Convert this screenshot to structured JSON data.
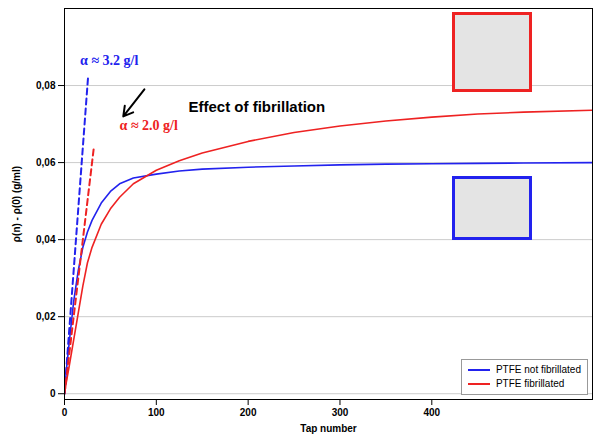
{
  "chart_data": {
    "type": "line",
    "x_label": "Tap number",
    "y_label": "ρ(n) - ρ(0) (g/ml)",
    "xlim": [
      0,
      575
    ],
    "xticks": [
      0,
      100,
      200,
      300,
      400
    ],
    "ylim": [
      -0.0015,
      0.1
    ],
    "yticks": [
      0,
      {
        "value": 0.02,
        "label": "0,02"
      },
      {
        "value": 0.04,
        "label": "0,04"
      },
      {
        "value": 0.06,
        "label": "0,06"
      },
      {
        "value": 0.08,
        "label": "0,08"
      }
    ],
    "grid": "y",
    "legend": "lower right",
    "x": [
      0,
      2,
      5,
      10,
      15,
      20,
      25,
      30,
      40,
      50,
      60,
      75,
      100,
      125,
      150,
      200,
      250,
      300,
      350,
      400,
      450,
      500,
      575
    ],
    "series": [
      {
        "name": "PTFE not fibrillated",
        "color": "#2222ee",
        "values": [
          0,
          0.006,
          0.013,
          0.024,
          0.032,
          0.038,
          0.042,
          0.045,
          0.0495,
          0.0525,
          0.0545,
          0.056,
          0.057,
          0.0578,
          0.0583,
          0.0588,
          0.0591,
          0.0594,
          0.0596,
          0.0597,
          0.0598,
          0.0599,
          0.06
        ]
      },
      {
        "name": "PTFE fibrillated",
        "color": "#ee2222",
        "values": [
          0,
          0.003,
          0.007,
          0.014,
          0.021,
          0.028,
          0.034,
          0.038,
          0.044,
          0.048,
          0.051,
          0.0545,
          0.058,
          0.0605,
          0.0625,
          0.0655,
          0.0678,
          0.0695,
          0.0708,
          0.0718,
          0.0726,
          0.0731,
          0.0736
        ]
      }
    ],
    "annotations": [
      {
        "text": "α ≈ 3.2 g/l",
        "color": "#2222ee",
        "x": 17,
        "y": 0.0865,
        "slope_line": {
          "x": [
            0,
            25.6
          ],
          "y": [
            0,
            0.082
          ],
          "line_style": "dashed"
        }
      },
      {
        "text": "α ≈ 2.0 g/l",
        "color": "#ee2222",
        "x": 60,
        "y": 0.0695,
        "slope_line": {
          "x": [
            0,
            32
          ],
          "y": [
            0,
            0.064
          ],
          "line_style": "dashed"
        }
      },
      {
        "text": "Effect of fibrillation",
        "color": "#000000",
        "x": 135,
        "y": 0.0745
      }
    ]
  }
}
